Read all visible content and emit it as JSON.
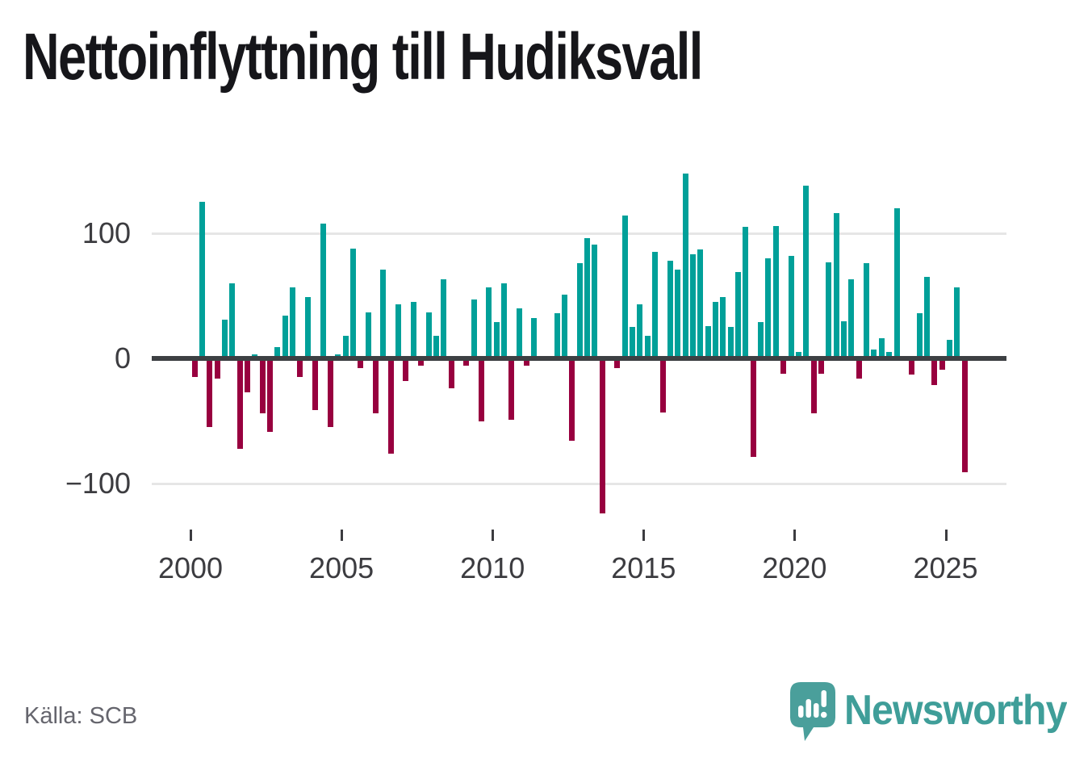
{
  "chart_data": {
    "type": "bar",
    "title": "Nettoinflyttning till Hudiksvall",
    "source": "Källa: SCB",
    "frequency": "quarterly",
    "grid": "horizontal",
    "legend": "none",
    "ylim": [
      -130,
      155
    ],
    "colors": {
      "positive": "#00a099",
      "negative": "#98003f"
    },
    "y_axis": {
      "ticks": [
        {
          "value": 100,
          "label": "100"
        },
        {
          "value": 0,
          "label": "0"
        },
        {
          "value": -100,
          "label": "−100"
        }
      ]
    },
    "x_axis": {
      "tick_years": [
        2000,
        2005,
        2010,
        2015,
        2020,
        2025
      ]
    },
    "series": [
      {
        "year": 2000,
        "quarterly": [
          -15,
          125,
          -55,
          -16
        ]
      },
      {
        "year": 2001,
        "quarterly": [
          31,
          60,
          -72,
          -27
        ]
      },
      {
        "year": 2002,
        "quarterly": [
          3,
          -44,
          -59,
          9
        ]
      },
      {
        "year": 2003,
        "quarterly": [
          34,
          57,
          -15,
          49
        ]
      },
      {
        "year": 2004,
        "quarterly": [
          -41,
          108,
          -55,
          3
        ]
      },
      {
        "year": 2005,
        "quarterly": [
          18,
          88,
          -8,
          37
        ]
      },
      {
        "year": 2006,
        "quarterly": [
          -44,
          71,
          -76,
          43
        ]
      },
      {
        "year": 2007,
        "quarterly": [
          -18,
          45,
          -6,
          37
        ]
      },
      {
        "year": 2008,
        "quarterly": [
          18,
          63,
          -24,
          0
        ]
      },
      {
        "year": 2009,
        "quarterly": [
          -6,
          47,
          -50,
          57
        ]
      },
      {
        "year": 2010,
        "quarterly": [
          29,
          60,
          -49,
          40
        ]
      },
      {
        "year": 2011,
        "quarterly": [
          -6,
          32,
          0,
          0
        ]
      },
      {
        "year": 2012,
        "quarterly": [
          36,
          51,
          -66,
          76
        ]
      },
      {
        "year": 2013,
        "quarterly": [
          96,
          91,
          -124,
          2
        ]
      },
      {
        "year": 2014,
        "quarterly": [
          -8,
          114,
          25,
          43
        ]
      },
      {
        "year": 2015,
        "quarterly": [
          18,
          85,
          -43,
          78
        ]
      },
      {
        "year": 2016,
        "quarterly": [
          71,
          148,
          83,
          87
        ]
      },
      {
        "year": 2017,
        "quarterly": [
          26,
          45,
          49,
          25
        ]
      },
      {
        "year": 2018,
        "quarterly": [
          69,
          105,
          -79,
          29
        ]
      },
      {
        "year": 2019,
        "quarterly": [
          80,
          106,
          -12,
          82
        ]
      },
      {
        "year": 2020,
        "quarterly": [
          5,
          138,
          -44,
          -12
        ]
      },
      {
        "year": 2021,
        "quarterly": [
          77,
          116,
          30,
          63
        ]
      },
      {
        "year": 2022,
        "quarterly": [
          -16,
          76,
          7,
          16
        ]
      },
      {
        "year": 2023,
        "quarterly": [
          5,
          120,
          0,
          -13
        ]
      },
      {
        "year": 2024,
        "quarterly": [
          36,
          65,
          -21,
          -9
        ]
      },
      {
        "year": 2025,
        "quarterly": [
          15,
          57,
          -91
        ]
      }
    ]
  },
  "branding": {
    "logo_text": "Newsworthy",
    "logo_color": "#3f9e99",
    "icon_color": "#4a9f9b"
  }
}
